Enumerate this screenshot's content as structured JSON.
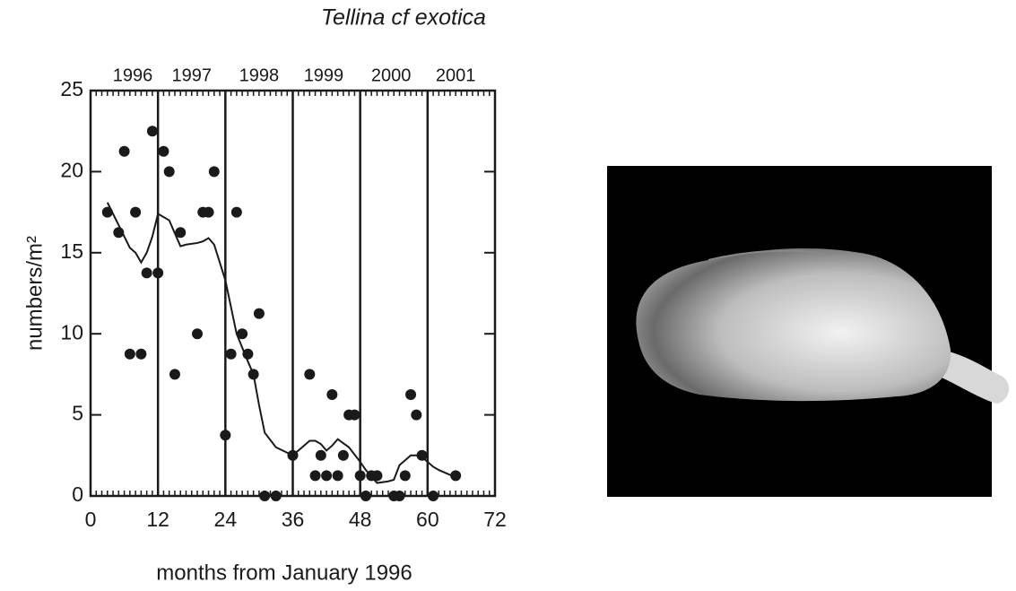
{
  "chart_data": {
    "type": "scatter",
    "title": "Tellina cf exotica",
    "xlabel": "months from January 1996",
    "ylabel": "numbers/m²",
    "xlim": [
      0,
      72
    ],
    "ylim": [
      0,
      25
    ],
    "xticks": [
      0,
      12,
      24,
      36,
      48,
      60,
      72
    ],
    "yticks": [
      0,
      5,
      10,
      15,
      20,
      25
    ],
    "x2ticks": [
      {
        "value": 7.5,
        "label": "1996"
      },
      {
        "value": 18,
        "label": "1997"
      },
      {
        "value": 30,
        "label": "1998"
      },
      {
        "value": 41.5,
        "label": "1999"
      },
      {
        "value": 53.5,
        "label": "2000"
      },
      {
        "value": 65,
        "label": "2001"
      }
    ],
    "vlines": [
      12,
      24,
      36,
      48,
      60
    ],
    "color": "#1a1a1a",
    "series": [
      {
        "type": "scatter",
        "x": [
          3,
          5,
          6,
          7,
          8,
          9,
          10,
          11,
          12,
          13,
          14,
          15,
          16,
          19,
          20,
          21,
          22,
          24,
          25,
          26,
          27,
          28,
          29,
          30,
          31,
          33,
          36,
          39,
          40,
          41,
          42,
          43,
          44,
          45,
          46,
          47,
          48,
          49,
          50,
          51,
          54,
          55,
          56,
          57,
          58,
          59,
          61,
          65
        ],
        "values": [
          17.5,
          16.25,
          21.25,
          8.75,
          17.5,
          8.75,
          13.75,
          22.5,
          13.75,
          21.25,
          20,
          7.5,
          16.25,
          10,
          17.5,
          17.5,
          20,
          3.75,
          8.75,
          17.5,
          10,
          8.75,
          7.5,
          11.25,
          0,
          0,
          2.5,
          7.5,
          1.25,
          2.5,
          1.25,
          6.25,
          1.25,
          2.5,
          5,
          5,
          1.25,
          0,
          1.25,
          1.25,
          0,
          0,
          1.25,
          6.25,
          5,
          2.5,
          0,
          1.25
        ]
      },
      {
        "type": "line",
        "x": [
          3,
          5,
          7,
          8,
          9,
          10,
          11,
          12,
          13,
          14,
          15,
          16,
          17,
          19,
          20,
          21,
          22,
          24,
          26,
          28,
          29,
          30,
          31,
          33,
          36,
          39,
          40,
          41,
          42,
          43,
          44,
          46,
          48,
          49,
          50,
          51,
          53,
          54,
          55,
          56,
          57,
          58,
          59,
          61,
          62,
          64,
          65
        ],
        "values": [
          18.1,
          16.7,
          15.3,
          15,
          14.4,
          15,
          16,
          17.4,
          17.2,
          17,
          16.2,
          15.4,
          15.5,
          15.6,
          15.7,
          15.9,
          15.5,
          13.3,
          10,
          8.3,
          7.5,
          5.6,
          3.9,
          3,
          2.5,
          3.4,
          3.4,
          3.2,
          2.8,
          3.1,
          3.5,
          3,
          2.1,
          1.6,
          1.2,
          0.8,
          0.9,
          1,
          1.9,
          2.2,
          2.5,
          2.5,
          2.4,
          1.8,
          1.6,
          1.3,
          1.2
        ]
      }
    ]
  }
}
